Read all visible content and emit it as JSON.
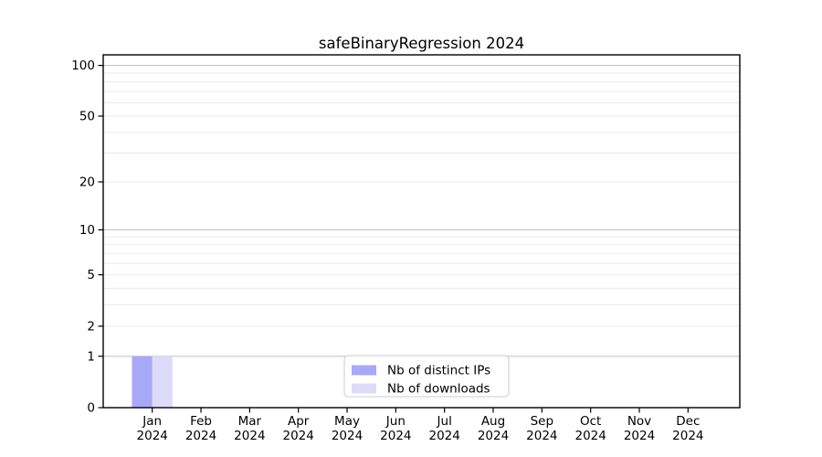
{
  "title": "safeBinaryRegression 2024",
  "chart_data": {
    "type": "bar",
    "title": "safeBinaryRegression 2024",
    "categories": [
      "Jan",
      "Feb",
      "Mar",
      "Apr",
      "May",
      "Jun",
      "Jul",
      "Aug",
      "Sep",
      "Oct",
      "Nov",
      "Dec"
    ],
    "category_year": "2024",
    "series": [
      {
        "name": "Nb of distinct IPs",
        "color": "#a8a8f8",
        "values": [
          1,
          0,
          0,
          0,
          0,
          0,
          0,
          0,
          0,
          0,
          0,
          0
        ]
      },
      {
        "name": "Nb of downloads",
        "color": "#dcdcf8",
        "values": [
          1,
          0,
          0,
          0,
          0,
          0,
          0,
          0,
          0,
          0,
          0,
          0
        ]
      }
    ],
    "yscale": "log1p",
    "ylim": [
      0,
      115.5
    ],
    "yticks": [
      0,
      1,
      2,
      5,
      10,
      20,
      50,
      100
    ],
    "major_gridlines": [
      1,
      10,
      100
    ],
    "minor_gridlines": [
      2,
      3,
      4,
      5,
      6,
      7,
      8,
      9,
      20,
      30,
      40,
      50,
      60,
      70,
      80,
      90
    ],
    "grid": true,
    "legend": {
      "position": "bottom-center",
      "entries": [
        "Nb of distinct IPs",
        "Nb of downloads"
      ]
    },
    "colors": {
      "major_grid": "#c6c6c6",
      "minor_grid": "#eaeaea",
      "axis": "#000000",
      "legend_border": "#cccccc",
      "background": "#ffffff"
    }
  }
}
